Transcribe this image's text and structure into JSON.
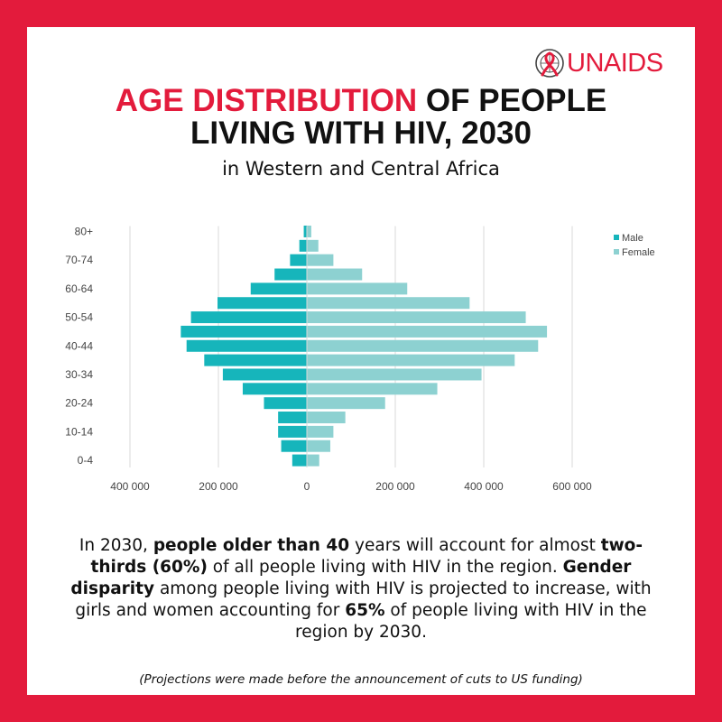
{
  "brand": {
    "name": "UNAIDS",
    "color": "#e31b3c",
    "logo_icon": "un-emblem-ribbon-icon"
  },
  "header": {
    "title_highlight": "AGE DISTRIBUTION",
    "title_rest_line1": " OF PEOPLE",
    "title_line2": "LIVING WITH HIV, 2030",
    "subtitle": "in Western and Central Africa"
  },
  "body": {
    "p1": "In 2030, ",
    "b1": "people older than 40",
    "p2": " years will account for almost ",
    "b2": "two-thirds (60%)",
    "p3": " of all people living with HIV in the region. ",
    "b3": "Gender disparity",
    "p4": " among people living with HIV is projected to increase, with girls and women accounting for ",
    "b4": "65%",
    "p5": " of people living with HIV in the region by 2030."
  },
  "footnote": "(Projections were made before the announcement of cuts to US funding)",
  "chart_data": {
    "type": "bar",
    "orientation": "horizontal-population-pyramid",
    "categories": [
      "0-4",
      "5-9",
      "10-14",
      "15-19",
      "20-24",
      "25-29",
      "30-34",
      "35-39",
      "40-44",
      "45-49",
      "50-54",
      "55-59",
      "60-64",
      "65-69",
      "70-74",
      "75-79",
      "80+"
    ],
    "y_tick_labels": [
      "0-4",
      "10-14",
      "20-24",
      "30-34",
      "40-44",
      "50-54",
      "60-64",
      "70-74",
      "80+"
    ],
    "x_tick_labels": [
      "400 000",
      "200 000",
      "0",
      "200 000",
      "400 000",
      "600 000"
    ],
    "x_ticks": [
      -400000,
      -200000,
      0,
      200000,
      400000,
      600000
    ],
    "xlim": [
      -420000,
      620000
    ],
    "series": [
      {
        "name": "Male",
        "color": "#16b5bb",
        "side": "left",
        "values": [
          33000,
          58000,
          65000,
          65000,
          97000,
          145000,
          190000,
          232000,
          272000,
          285000,
          262000,
          202000,
          127000,
          73000,
          38000,
          17000,
          7000
        ]
      },
      {
        "name": "Female",
        "color": "#8dd1d1",
        "side": "right",
        "values": [
          28000,
          53000,
          60000,
          87000,
          177000,
          295000,
          395000,
          470000,
          523000,
          543000,
          495000,
          368000,
          227000,
          125000,
          60000,
          26000,
          10000
        ]
      }
    ],
    "grid": true,
    "legend_position": "top-right"
  }
}
